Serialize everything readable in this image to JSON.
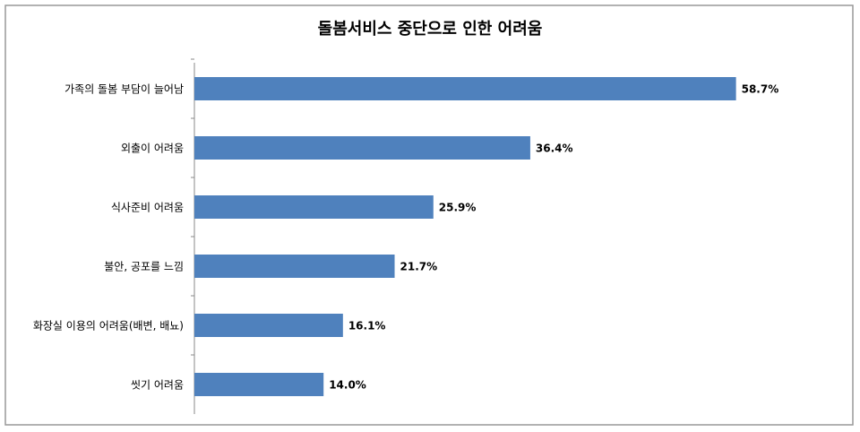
{
  "chart_data": {
    "type": "bar",
    "orientation": "horizontal",
    "title": "돌봄서비스 중단으로 인한 어려움",
    "categories": [
      "가족의 돌봄 부담이 늘어남",
      "외출이 어려움",
      "식사준비 어려움",
      "불안, 공포를 느낌",
      "화장실 이용의 어려움(배변, 배뇨)",
      "씻기 어려움"
    ],
    "values": [
      58.7,
      36.4,
      25.9,
      21.7,
      16.1,
      14.0
    ],
    "value_labels": [
      "58.7%",
      "36.4%",
      "25.9%",
      "21.7%",
      "16.1%",
      "14.0%"
    ],
    "color": "#4f81bd",
    "xlim": [
      0,
      70
    ]
  }
}
